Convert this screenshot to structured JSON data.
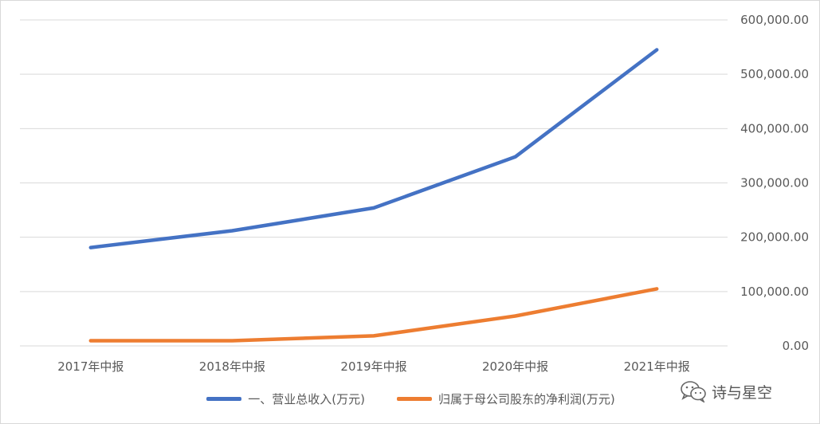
{
  "chart_data": {
    "type": "line",
    "title": "",
    "xlabel": "",
    "ylabel": "",
    "categories": [
      "2017年中报",
      "2018年中报",
      "2019年中报",
      "2020年中报",
      "2021年中报"
    ],
    "ylim": [
      0,
      600000
    ],
    "y_ticks": [
      "0.00",
      "100,000.00",
      "200,000.00",
      "300,000.00",
      "400,000.00",
      "500,000.00",
      "600,000.00"
    ],
    "y_axis_side": "right",
    "grid": true,
    "legend_position": "bottom",
    "series": [
      {
        "name": "一、营业总收入(万元)",
        "color": "#4472C4",
        "values": [
          181000,
          212000,
          254000,
          348000,
          545000
        ]
      },
      {
        "name": "归属于母公司股东的净利润(万元)",
        "color": "#ED7D31",
        "values": [
          9500,
          9500,
          18500,
          55000,
          105000
        ]
      }
    ]
  },
  "watermark": {
    "text": "诗与星空"
  }
}
